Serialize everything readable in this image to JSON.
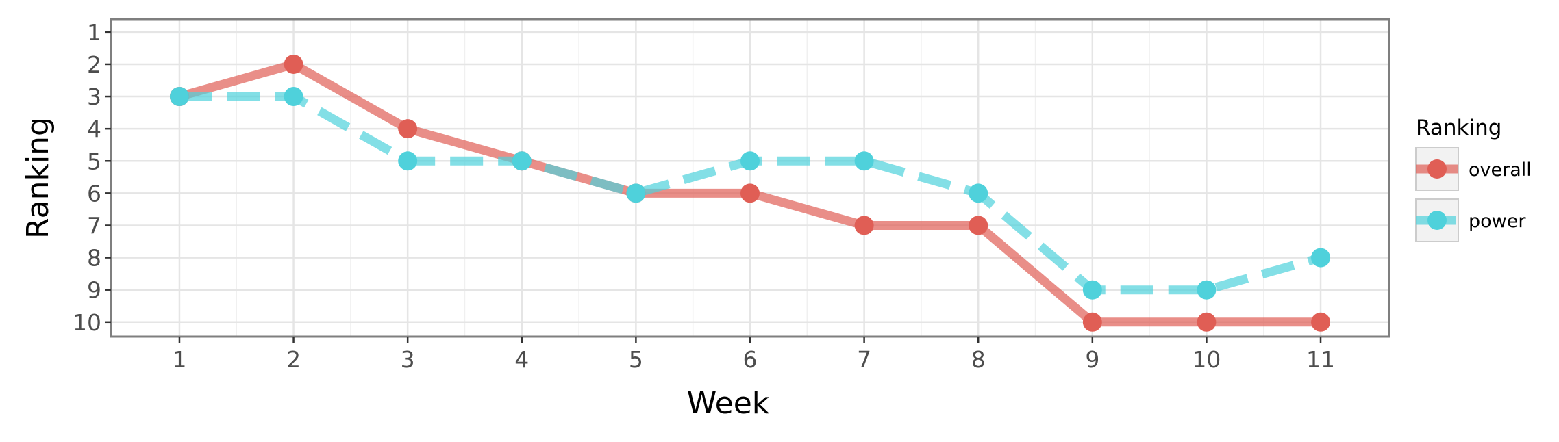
{
  "chart_data": {
    "type": "line",
    "xlabel": "Week",
    "ylabel": "Ranking",
    "x": [
      1,
      2,
      3,
      4,
      5,
      6,
      7,
      8,
      9,
      10,
      11
    ],
    "x_ticks": [
      "1",
      "2",
      "3",
      "4",
      "5",
      "6",
      "7",
      "8",
      "9",
      "10",
      "11"
    ],
    "y_ticks": [
      "1",
      "2",
      "3",
      "4",
      "5",
      "6",
      "7",
      "8",
      "9",
      "10"
    ],
    "xlim": [
      0.4,
      11.6
    ],
    "ylim": [
      0.6,
      10.45
    ],
    "y_reversed": true,
    "grid": true,
    "legend": {
      "title": "Ranking",
      "position": "right"
    },
    "series": [
      {
        "name": "overall",
        "color": "#e05e55",
        "line_style": "solid",
        "values": [
          3,
          2,
          4,
          5,
          6,
          6,
          7,
          7,
          10,
          10,
          10
        ]
      },
      {
        "name": "power",
        "color": "#4fd1db",
        "line_style": "dashed",
        "values": [
          3,
          3,
          5,
          5,
          6,
          5,
          5,
          6,
          9,
          9,
          8
        ]
      }
    ]
  }
}
